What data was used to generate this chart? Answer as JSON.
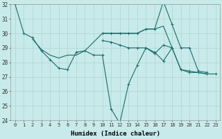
{
  "title": "",
  "xlabel": "Humidex (Indice chaleur)",
  "ylabel": "",
  "background_color": "#c8eaea",
  "grid_color": "#aed4d4",
  "line_color": "#1a6b6b",
  "xlim": [
    -0.5,
    23.5
  ],
  "ylim": [
    24,
    32
  ],
  "yticks": [
    24,
    25,
    26,
    27,
    28,
    29,
    30,
    31,
    32
  ],
  "xticks": [
    0,
    1,
    2,
    3,
    4,
    5,
    6,
    7,
    8,
    9,
    10,
    11,
    12,
    13,
    14,
    15,
    16,
    17,
    18,
    19,
    20,
    21,
    22,
    23
  ],
  "series": [
    {
      "x": [
        0,
        1,
        2,
        3,
        4,
        5,
        6,
        7,
        8,
        9,
        10,
        11,
        12,
        13,
        14,
        15,
        16,
        17,
        18,
        19,
        20,
        21,
        22,
        23
      ],
      "y": [
        32.0,
        30.0,
        29.7,
        28.8,
        28.2,
        27.6,
        27.5,
        28.7,
        28.8,
        28.5,
        28.5,
        24.8,
        23.8,
        26.5,
        27.8,
        29.0,
        28.6,
        29.2,
        29.0,
        27.5,
        27.3,
        27.3,
        27.2,
        27.2
      ],
      "marker": true
    },
    {
      "x": [
        2,
        3,
        4,
        5,
        6,
        7,
        8,
        10,
        11,
        12,
        13,
        14,
        15,
        16,
        17,
        18
      ],
      "y": [
        29.6,
        28.9,
        28.5,
        28.3,
        28.5,
        28.5,
        28.8,
        30.0,
        30.0,
        30.0,
        30.0,
        30.0,
        30.3,
        30.3,
        30.5,
        29.0
      ],
      "marker": false
    },
    {
      "x": [
        10,
        11,
        12,
        13,
        14,
        15,
        16,
        17,
        18,
        19,
        20,
        21,
        22
      ],
      "y": [
        30.0,
        30.0,
        30.0,
        30.0,
        30.0,
        30.3,
        30.3,
        32.2,
        30.6,
        29.0,
        29.0,
        27.4,
        27.3
      ],
      "marker": true
    },
    {
      "x": [
        10,
        11,
        12,
        13,
        14,
        15,
        16,
        17,
        18,
        19,
        20,
        21,
        22
      ],
      "y": [
        29.5,
        29.4,
        29.2,
        29.0,
        29.0,
        29.0,
        28.7,
        28.1,
        29.0,
        27.5,
        27.4,
        27.3,
        27.2
      ],
      "marker": true
    }
  ]
}
